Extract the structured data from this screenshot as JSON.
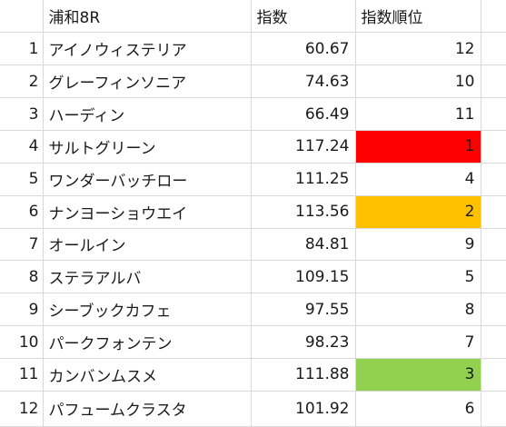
{
  "header": {
    "race": "浦和8R",
    "index": "指数",
    "rank": "指数順位"
  },
  "colors": {
    "rank1": "#ff0000",
    "rank2": "#ffc000",
    "rank3": "#92d050",
    "grid": "#d9d9d9"
  },
  "rows": [
    {
      "num": "1",
      "name": "アイノウィステリア",
      "index": "60.67",
      "rank": "12",
      "highlight": ""
    },
    {
      "num": "2",
      "name": "グレーフィンソニア",
      "index": "74.63",
      "rank": "10",
      "highlight": ""
    },
    {
      "num": "3",
      "name": "ハーディン",
      "index": "66.49",
      "rank": "11",
      "highlight": ""
    },
    {
      "num": "4",
      "name": "サルトグリーン",
      "index": "117.24",
      "rank": "1",
      "highlight": "#ff0000"
    },
    {
      "num": "5",
      "name": "ワンダーバッチロー",
      "index": "111.25",
      "rank": "4",
      "highlight": ""
    },
    {
      "num": "6",
      "name": "ナンヨーショウエイ",
      "index": "113.56",
      "rank": "2",
      "highlight": "#ffc000"
    },
    {
      "num": "7",
      "name": "オールイン",
      "index": "84.81",
      "rank": "9",
      "highlight": ""
    },
    {
      "num": "8",
      "name": "ステラアルバ",
      "index": "109.15",
      "rank": "5",
      "highlight": ""
    },
    {
      "num": "9",
      "name": "シーブックカフェ",
      "index": "97.55",
      "rank": "8",
      "highlight": ""
    },
    {
      "num": "10",
      "name": "パークフォンテン",
      "index": "98.23",
      "rank": "7",
      "highlight": ""
    },
    {
      "num": "11",
      "name": "カンバンムスメ",
      "index": "111.88",
      "rank": "3",
      "highlight": "#92d050"
    },
    {
      "num": "12",
      "name": "パフュームクラスタ",
      "index": "101.92",
      "rank": "6",
      "highlight": ""
    }
  ]
}
